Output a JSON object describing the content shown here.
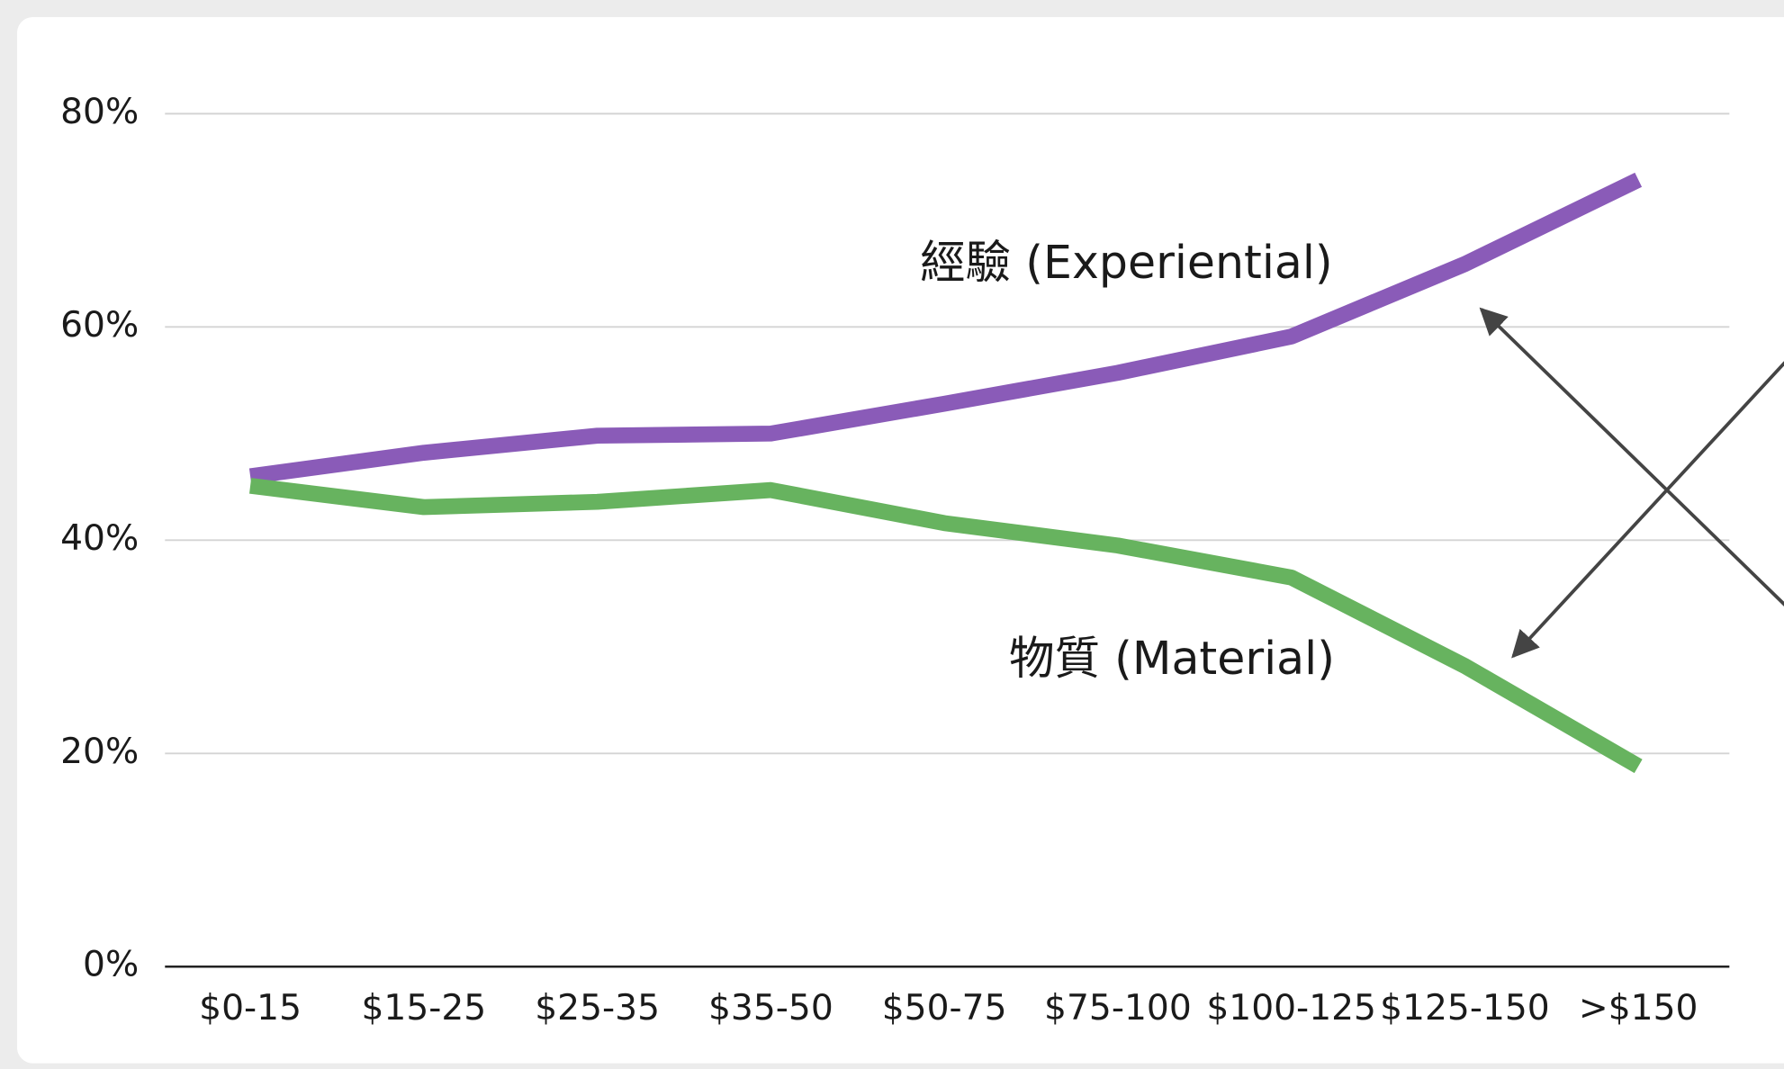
{
  "chart_data": {
    "type": "line",
    "categories": [
      "$0-15",
      "$15-25",
      "$25-35",
      "$35-50",
      "$50-75",
      "$75-100",
      "$100-125",
      "$125-150",
      ">$150"
    ],
    "series": [
      {
        "name": "經驗 (Experiential)",
        "color": "#8a5bb8",
        "values": [
          46,
          48.2,
          49.8,
          50,
          52.8,
          55.7,
          59.1,
          65.9,
          73.8
        ]
      },
      {
        "name": "物質 (Material)",
        "color": "#67b35f",
        "values": [
          45.1,
          43.1,
          43.6,
          44.7,
          41.6,
          39.5,
          36.5,
          28.2,
          18.8
        ]
      }
    ],
    "ylim": [
      0,
      80
    ],
    "yticks": [
      {
        "value": 0,
        "label": "0%"
      },
      {
        "value": 20,
        "label": "20%"
      },
      {
        "value": 40,
        "label": "40%"
      },
      {
        "value": 60,
        "label": "60%"
      },
      {
        "value": 80,
        "label": "80%"
      }
    ],
    "grid": true
  }
}
